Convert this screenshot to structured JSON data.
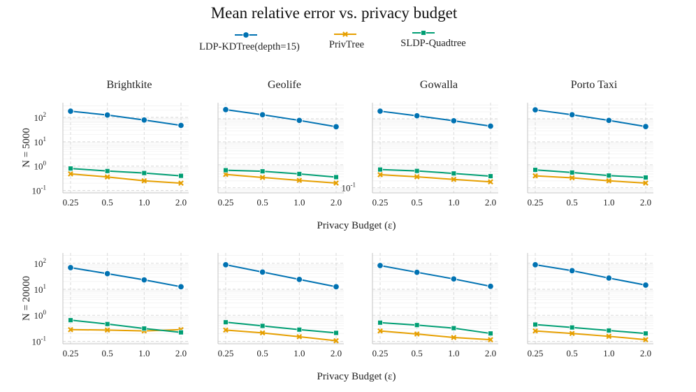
{
  "chart_data": {
    "type": "line",
    "title": "Mean relative error vs. privacy budget",
    "yscale": "log",
    "xlabel": "Privacy Budget (ε)",
    "x": [
      0.25,
      0.5,
      1.0,
      2.0
    ],
    "x_tick_labels": [
      "0.25",
      "0.5",
      "1.0",
      "2.0"
    ],
    "legend": [
      {
        "name": "LDP-KDTree(depth=15)",
        "color": "#0072B2",
        "marker": "circle"
      },
      {
        "name": "PrivTree",
        "color": "#E69F00",
        "marker": "x"
      },
      {
        "name": "SLDP-Quadtree",
        "color": "#009E73",
        "marker": "square"
      }
    ],
    "columns": [
      "Brightkite",
      "Geolife",
      "Gowalla",
      "Porto Taxi"
    ],
    "rows": [
      {
        "label": "N = 5000",
        "panels": [
          {
            "dataset": "Brightkite",
            "ylim": [
              0.08,
              400
            ],
            "yticks": [
              {
                "base": "10",
                "exp": "-1"
              },
              {
                "base": "10",
                "exp": "0"
              },
              {
                "base": "10",
                "exp": "1"
              },
              {
                "base": "10",
                "exp": "2"
              }
            ],
            "series": [
              {
                "name": "LDP-KDTree(depth=15)",
                "values": [
                  180,
                  125,
                  78,
                  47
                ]
              },
              {
                "name": "PrivTree",
                "values": [
                  0.48,
                  0.36,
                  0.25,
                  0.2
                ]
              },
              {
                "name": "SLDP-Quadtree",
                "values": [
                  0.8,
                  0.63,
                  0.52,
                  0.4
                ]
              }
            ]
          },
          {
            "dataset": "Geolife",
            "ylim": [
              0.06,
              500
            ],
            "yticks": [],
            "series": [
              {
                "name": "LDP-KDTree(depth=15)",
                "values": [
                  250,
                  150,
                  85,
                  45
                ]
              },
              {
                "name": "PrivTree",
                "values": [
                  0.38,
                  0.28,
                  0.21,
                  0.16
                ]
              },
              {
                "name": "SLDP-Quadtree",
                "values": [
                  0.58,
                  0.52,
                  0.4,
                  0.29
                ]
              }
            ]
          },
          {
            "dataset": "Gowalla",
            "ylim": [
              0.06,
              500
            ],
            "yticks": [
              {
                "base": "10",
                "exp": "-1"
              }
            ],
            "series": [
              {
                "name": "LDP-KDTree(depth=15)",
                "values": [
                  215,
                  135,
                  82,
                  48
                ]
              },
              {
                "name": "PrivTree",
                "values": [
                  0.37,
                  0.3,
                  0.23,
                  0.18
                ]
              },
              {
                "name": "SLDP-Quadtree",
                "values": [
                  0.62,
                  0.54,
                  0.42,
                  0.32
                ]
              }
            ]
          },
          {
            "dataset": "Porto Taxi",
            "ylim": [
              0.06,
              500
            ],
            "yticks": [],
            "series": [
              {
                "name": "LDP-KDTree(depth=15)",
                "values": [
                  245,
                  150,
                  85,
                  46
                ]
              },
              {
                "name": "PrivTree",
                "values": [
                  0.33,
                  0.27,
                  0.2,
                  0.16
                ]
              },
              {
                "name": "SLDP-Quadtree",
                "values": [
                  0.6,
                  0.46,
                  0.34,
                  0.28
                ]
              }
            ]
          }
        ]
      },
      {
        "label": "N = 20000",
        "panels": [
          {
            "dataset": "Brightkite",
            "ylim": [
              0.08,
              250
            ],
            "yticks": [
              {
                "base": "10",
                "exp": "-1"
              },
              {
                "base": "10",
                "exp": "0"
              },
              {
                "base": "10",
                "exp": "1"
              },
              {
                "base": "10",
                "exp": "2"
              }
            ],
            "series": [
              {
                "name": "LDP-KDTree(depth=15)",
                "values": [
                  68,
                  40,
                  23,
                  12.5
                ]
              },
              {
                "name": "PrivTree",
                "values": [
                  0.28,
                  0.27,
                  0.25,
                  0.28
                ]
              },
              {
                "name": "SLDP-Quadtree",
                "values": [
                  0.65,
                  0.46,
                  0.31,
                  0.22
                ]
              }
            ]
          },
          {
            "dataset": "Geolife",
            "ylim": [
              0.08,
              250
            ],
            "yticks": [],
            "series": [
              {
                "name": "LDP-KDTree(depth=15)",
                "values": [
                  88,
                  46,
                  24,
                  12.5
                ]
              },
              {
                "name": "PrivTree",
                "values": [
                  0.27,
                  0.21,
                  0.15,
                  0.105
                ]
              },
              {
                "name": "SLDP-Quadtree",
                "values": [
                  0.54,
                  0.39,
                  0.28,
                  0.21
                ]
              }
            ]
          },
          {
            "dataset": "Gowalla",
            "ylim": [
              0.08,
              250
            ],
            "yticks": [],
            "series": [
              {
                "name": "LDP-KDTree(depth=15)",
                "values": [
                  82,
                  45,
                  25,
                  13
                ]
              },
              {
                "name": "PrivTree",
                "values": [
                  0.25,
                  0.19,
                  0.14,
                  0.115
                ]
              },
              {
                "name": "SLDP-Quadtree",
                "values": [
                  0.52,
                  0.42,
                  0.32,
                  0.2
                ]
              }
            ]
          },
          {
            "dataset": "Porto Taxi",
            "ylim": [
              0.08,
              250
            ],
            "yticks": [],
            "series": [
              {
                "name": "LDP-KDTree(depth=15)",
                "values": [
                  88,
                  52,
                  27,
                  14.5
                ]
              },
              {
                "name": "PrivTree",
                "values": [
                  0.25,
                  0.2,
                  0.155,
                  0.115
                ]
              },
              {
                "name": "SLDP-Quadtree",
                "values": [
                  0.44,
                  0.34,
                  0.26,
                  0.2
                ]
              }
            ]
          }
        ]
      }
    ]
  }
}
